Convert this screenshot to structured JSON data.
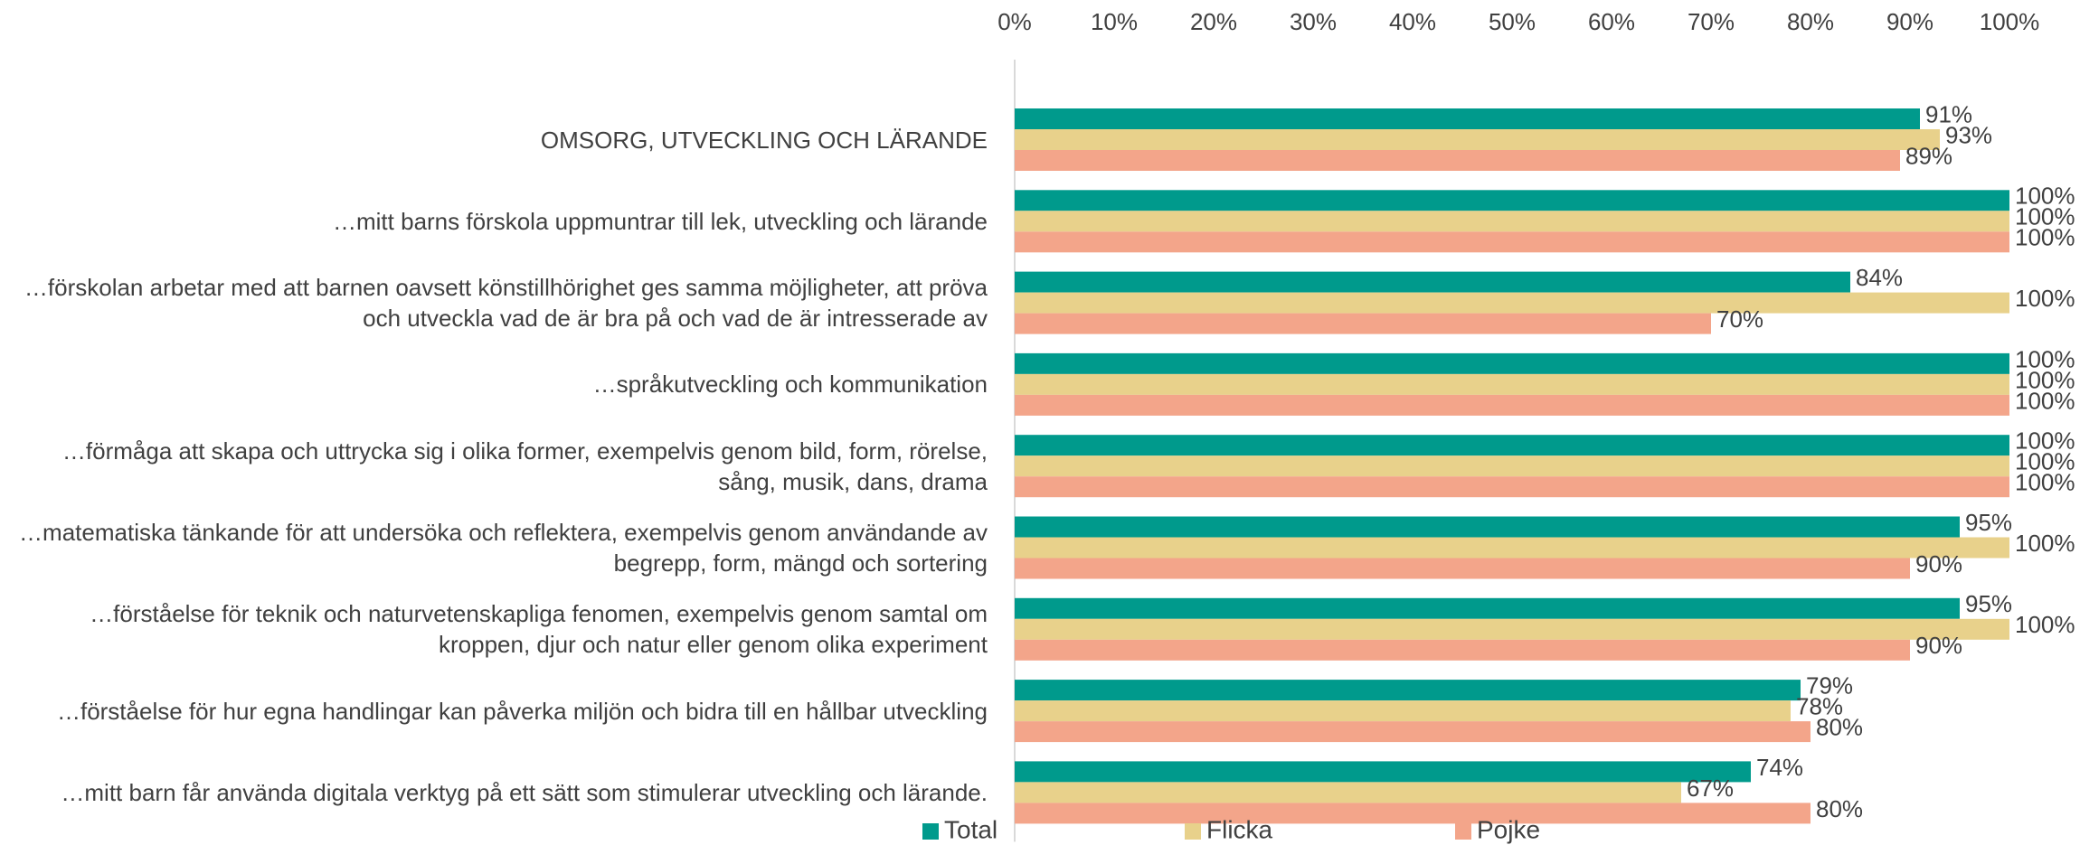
{
  "chart_data": {
    "type": "bar",
    "orientation": "horizontal",
    "categories": [
      "OMSORG, UTVECKLING OCH LÄRANDE",
      "…mitt barns förskola uppmuntrar till lek, utveckling och lärande",
      "…förskolan arbetar med att barnen oavsett könstillhörighet ges samma möjligheter, att pröva och utveckla vad de är bra på och vad de är intresserade av",
      "…språkutveckling och kommunikation",
      "…förmåga att skapa och uttrycka sig i olika former, exempelvis genom bild, form, rörelse, sång, musik, dans, drama",
      "…matematiska tänkande för att undersöka och reflektera, exempelvis genom användande av begrepp, form, mängd och sortering",
      "…förståelse för teknik och naturvetenskapliga fenomen, exempelvis genom samtal om kroppen, djur och natur eller genom olika experiment",
      "…förståelse för hur egna handlingar kan påverka miljön och bidra till en hållbar utveckling",
      "…mitt barn får använda digitala verktyg på ett sätt som stimulerar utveckling och lärande."
    ],
    "series": [
      {
        "name": "Total",
        "color": "#009a8c",
        "values": [
          91,
          100,
          84,
          100,
          100,
          95,
          95,
          79,
          74
        ],
        "value_labels": [
          "91%",
          "100%",
          "84%",
          "100%",
          "100%",
          "95%",
          "95%",
          "79%",
          "74%"
        ]
      },
      {
        "name": "Flicka",
        "color": "#e8d18b",
        "values": [
          93,
          100,
          100,
          100,
          100,
          100,
          100,
          78,
          67
        ],
        "value_labels": [
          "93%",
          "100%",
          "100%",
          "100%",
          "100%",
          "100%",
          "100%",
          "78%",
          "67%"
        ]
      },
      {
        "name": "Pojke",
        "color": "#f3a58a",
        "values": [
          89,
          100,
          70,
          100,
          100,
          90,
          90,
          80,
          80
        ],
        "value_labels": [
          "89%",
          "100%",
          "70%",
          "100%",
          "100%",
          "90%",
          "90%",
          "80%",
          "80%"
        ]
      }
    ],
    "xlim": [
      0,
      100
    ],
    "xticks": [
      {
        "value": 0,
        "label": "0%"
      },
      {
        "value": 10,
        "label": "10%"
      },
      {
        "value": 20,
        "label": "20%"
      },
      {
        "value": 30,
        "label": "30%"
      },
      {
        "value": 40,
        "label": "40%"
      },
      {
        "value": 50,
        "label": "50%"
      },
      {
        "value": 60,
        "label": "60%"
      },
      {
        "value": 70,
        "label": "70%"
      },
      {
        "value": 80,
        "label": "80%"
      },
      {
        "value": 90,
        "label": "90%"
      },
      {
        "value": 100,
        "label": "100%"
      }
    ],
    "legend": "bottom"
  }
}
